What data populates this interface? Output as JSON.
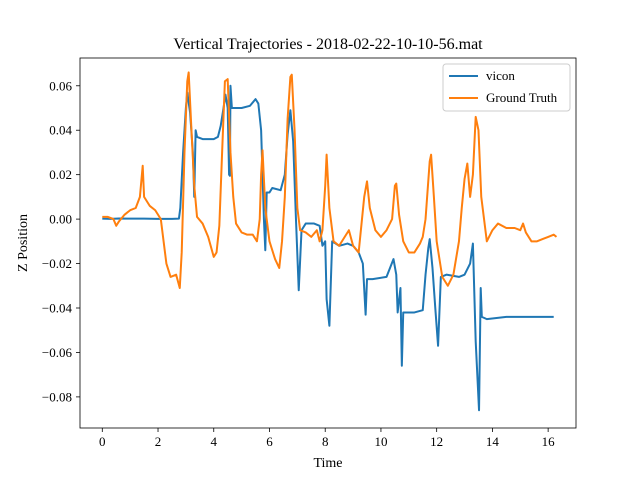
{
  "chart_data": {
    "type": "line",
    "title": "Vertical Trajectories - 2018-02-22-10-10-56.mat",
    "xlabel": "Time",
    "ylabel": "Z Position",
    "xlim": [
      -0.8,
      17.0
    ],
    "ylim": [
      -0.094,
      0.0725
    ],
    "xticks": [
      0,
      2,
      4,
      6,
      8,
      10,
      12,
      14,
      16
    ],
    "xtick_labels": [
      "0",
      "2",
      "4",
      "6",
      "8",
      "10",
      "12",
      "14",
      "16"
    ],
    "yticks": [
      -0.08,
      -0.06,
      -0.04,
      -0.02,
      0.0,
      0.02,
      0.04,
      0.06
    ],
    "ytick_labels": [
      "−0.08",
      "−0.06",
      "−0.04",
      "−0.02",
      "0.00",
      "0.02",
      "0.04",
      "0.06"
    ],
    "grid": false,
    "legend_position": "upper right",
    "series": [
      {
        "name": "vicon",
        "color": "#1f77b4",
        "points": [
          [
            0.0,
            0.0002
          ],
          [
            0.3,
            0.0001
          ],
          [
            0.6,
            0.0003
          ],
          [
            1.0,
            0.0002
          ],
          [
            1.5,
            0.0002
          ],
          [
            2.0,
            0.0001
          ],
          [
            2.5,
            0.0001
          ],
          [
            2.75,
            0.0002
          ],
          [
            2.8,
            0.005
          ],
          [
            2.9,
            0.03
          ],
          [
            3.0,
            0.05
          ],
          [
            3.05,
            0.057
          ],
          [
            3.15,
            0.048
          ],
          [
            3.25,
            0.03
          ],
          [
            3.3,
            0.01
          ],
          [
            3.35,
            0.04
          ],
          [
            3.4,
            0.037
          ],
          [
            3.6,
            0.036
          ],
          [
            4.0,
            0.036
          ],
          [
            4.15,
            0.037
          ],
          [
            4.25,
            0.042
          ],
          [
            4.35,
            0.05
          ],
          [
            4.42,
            0.056
          ],
          [
            4.5,
            0.05
          ],
          [
            4.55,
            0.02
          ],
          [
            4.58,
            0.0195
          ],
          [
            4.6,
            0.06
          ],
          [
            4.65,
            0.05
          ],
          [
            5.0,
            0.05
          ],
          [
            5.3,
            0.051
          ],
          [
            5.5,
            0.054
          ],
          [
            5.6,
            0.052
          ],
          [
            5.7,
            0.04
          ],
          [
            5.8,
            0.0
          ],
          [
            5.85,
            -0.014
          ],
          [
            5.9,
            0.012
          ],
          [
            6.0,
            0.012
          ],
          [
            6.1,
            0.014
          ],
          [
            6.4,
            0.013
          ],
          [
            6.55,
            0.02
          ],
          [
            6.65,
            0.038
          ],
          [
            6.75,
            0.049
          ],
          [
            6.85,
            0.035
          ],
          [
            6.95,
            0.0
          ],
          [
            7.05,
            -0.032
          ],
          [
            7.15,
            -0.005
          ],
          [
            7.3,
            -0.002
          ],
          [
            7.6,
            -0.002
          ],
          [
            7.8,
            -0.003
          ],
          [
            7.9,
            -0.012
          ],
          [
            8.0,
            -0.01
          ],
          [
            8.05,
            -0.036
          ],
          [
            8.15,
            -0.048
          ],
          [
            8.25,
            -0.01
          ],
          [
            8.5,
            -0.012
          ],
          [
            8.8,
            -0.011
          ],
          [
            9.0,
            -0.012
          ],
          [
            9.2,
            -0.015
          ],
          [
            9.35,
            -0.02
          ],
          [
            9.45,
            -0.043
          ],
          [
            9.5,
            -0.027
          ],
          [
            9.7,
            -0.027
          ],
          [
            10.2,
            -0.026
          ],
          [
            10.45,
            -0.018
          ],
          [
            10.55,
            -0.025
          ],
          [
            10.6,
            -0.042
          ],
          [
            10.7,
            -0.031
          ],
          [
            10.75,
            -0.066
          ],
          [
            10.8,
            -0.042
          ],
          [
            11.2,
            -0.042
          ],
          [
            11.5,
            -0.041
          ],
          [
            11.6,
            -0.025
          ],
          [
            11.7,
            -0.013
          ],
          [
            11.75,
            -0.009
          ],
          [
            11.85,
            -0.022
          ],
          [
            11.95,
            -0.04
          ],
          [
            12.05,
            -0.057
          ],
          [
            12.15,
            -0.026
          ],
          [
            12.35,
            -0.025
          ],
          [
            12.8,
            -0.026
          ],
          [
            13.0,
            -0.025
          ],
          [
            13.2,
            -0.02
          ],
          [
            13.3,
            -0.011
          ],
          [
            13.4,
            -0.055
          ],
          [
            13.52,
            -0.086
          ],
          [
            13.58,
            -0.031
          ],
          [
            13.62,
            -0.044
          ],
          [
            13.8,
            -0.045
          ],
          [
            14.5,
            -0.044
          ],
          [
            15.5,
            -0.044
          ],
          [
            16.2,
            -0.044
          ]
        ]
      },
      {
        "name": "Ground Truth",
        "color": "#ff7f0e",
        "points": [
          [
            0.0,
            0.001
          ],
          [
            0.2,
            0.001
          ],
          [
            0.4,
            0.0
          ],
          [
            0.5,
            -0.003
          ],
          [
            0.6,
            -0.001
          ],
          [
            0.8,
            0.002
          ],
          [
            1.0,
            0.004
          ],
          [
            1.2,
            0.005
          ],
          [
            1.35,
            0.01
          ],
          [
            1.45,
            0.024
          ],
          [
            1.5,
            0.01
          ],
          [
            1.7,
            0.006
          ],
          [
            1.9,
            0.004
          ],
          [
            2.1,
            0.0
          ],
          [
            2.2,
            -0.01
          ],
          [
            2.3,
            -0.02
          ],
          [
            2.45,
            -0.026
          ],
          [
            2.65,
            -0.025
          ],
          [
            2.78,
            -0.031
          ],
          [
            2.85,
            -0.015
          ],
          [
            2.95,
            0.03
          ],
          [
            3.05,
            0.062
          ],
          [
            3.1,
            0.066
          ],
          [
            3.2,
            0.04
          ],
          [
            3.3,
            0.015
          ],
          [
            3.4,
            0.001
          ],
          [
            3.6,
            -0.002
          ],
          [
            3.8,
            -0.008
          ],
          [
            4.0,
            -0.017
          ],
          [
            4.1,
            -0.015
          ],
          [
            4.2,
            -0.003
          ],
          [
            4.3,
            0.03
          ],
          [
            4.4,
            0.062
          ],
          [
            4.5,
            0.063
          ],
          [
            4.6,
            0.03
          ],
          [
            4.7,
            0.01
          ],
          [
            4.8,
            -0.002
          ],
          [
            5.0,
            -0.006
          ],
          [
            5.2,
            -0.007
          ],
          [
            5.4,
            -0.007
          ],
          [
            5.55,
            -0.01
          ],
          [
            5.65,
            0.0
          ],
          [
            5.7,
            0.02
          ],
          [
            5.75,
            0.031
          ],
          [
            5.85,
            0.005
          ],
          [
            6.0,
            -0.01
          ],
          [
            6.2,
            -0.018
          ],
          [
            6.35,
            -0.022
          ],
          [
            6.45,
            -0.01
          ],
          [
            6.55,
            0.01
          ],
          [
            6.65,
            0.045
          ],
          [
            6.75,
            0.064
          ],
          [
            6.8,
            0.065
          ],
          [
            6.9,
            0.04
          ],
          [
            7.0,
            0.005
          ],
          [
            7.1,
            -0.005
          ],
          [
            7.3,
            -0.006
          ],
          [
            7.5,
            -0.008
          ],
          [
            7.7,
            -0.005
          ],
          [
            7.8,
            -0.01
          ],
          [
            7.9,
            -0.005
          ],
          [
            8.0,
            0.015
          ],
          [
            8.05,
            0.029
          ],
          [
            8.15,
            0.005
          ],
          [
            8.3,
            -0.01
          ],
          [
            8.5,
            -0.012
          ],
          [
            8.7,
            -0.008
          ],
          [
            8.85,
            -0.005
          ],
          [
            9.0,
            -0.012
          ],
          [
            9.2,
            -0.015
          ],
          [
            9.4,
            0.01
          ],
          [
            9.5,
            0.017
          ],
          [
            9.6,
            0.005
          ],
          [
            9.8,
            -0.005
          ],
          [
            10.0,
            -0.008
          ],
          [
            10.2,
            -0.005
          ],
          [
            10.4,
            0.0
          ],
          [
            10.5,
            0.015
          ],
          [
            10.55,
            0.016
          ],
          [
            10.65,
            0.002
          ],
          [
            10.8,
            -0.01
          ],
          [
            11.0,
            -0.015
          ],
          [
            11.2,
            -0.015
          ],
          [
            11.4,
            -0.011
          ],
          [
            11.5,
            -0.008
          ],
          [
            11.6,
            0.0
          ],
          [
            11.75,
            0.026
          ],
          [
            11.8,
            0.029
          ],
          [
            11.9,
            0.01
          ],
          [
            12.0,
            -0.01
          ],
          [
            12.2,
            -0.026
          ],
          [
            12.4,
            -0.03
          ],
          [
            12.6,
            -0.025
          ],
          [
            12.8,
            -0.01
          ],
          [
            12.9,
            0.005
          ],
          [
            13.0,
            0.018
          ],
          [
            13.1,
            0.025
          ],
          [
            13.2,
            0.01
          ],
          [
            13.3,
            0.02
          ],
          [
            13.4,
            0.046
          ],
          [
            13.5,
            0.04
          ],
          [
            13.6,
            0.01
          ],
          [
            13.8,
            -0.01
          ],
          [
            14.0,
            -0.005
          ],
          [
            14.2,
            -0.002
          ],
          [
            14.5,
            -0.004
          ],
          [
            14.8,
            -0.004
          ],
          [
            15.0,
            -0.005
          ],
          [
            15.1,
            -0.002
          ],
          [
            15.2,
            -0.006
          ],
          [
            15.4,
            -0.01
          ],
          [
            15.6,
            -0.01
          ],
          [
            15.8,
            -0.009
          ],
          [
            16.0,
            -0.008
          ],
          [
            16.2,
            -0.007
          ],
          [
            16.3,
            -0.008
          ]
        ]
      }
    ]
  }
}
